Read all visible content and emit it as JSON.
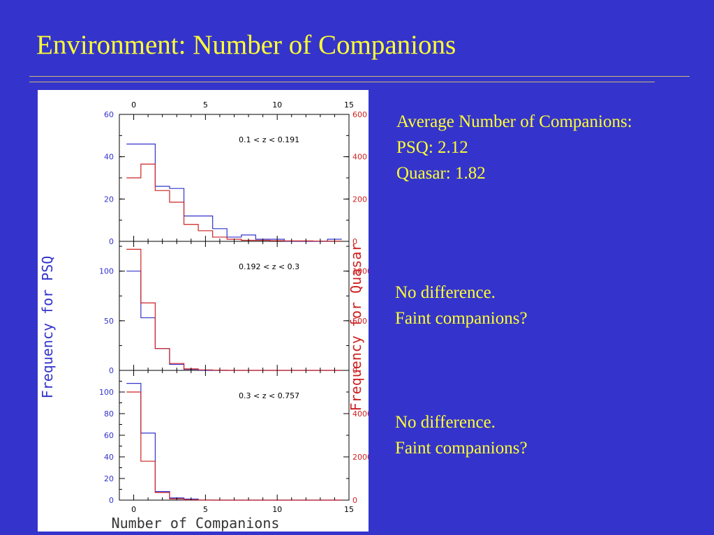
{
  "slide": {
    "title": "Environment: Number of Companions",
    "notes_avg": {
      "heading": "Average Number of Companions:",
      "psq": "PSQ: 2.12",
      "quasar": "Quasar: 1.82"
    },
    "notes_panel2": {
      "line1": "No difference.",
      "line2": "Faint companions?"
    },
    "notes_panel3": {
      "line1": "No difference.",
      "line2": "Faint companions?"
    }
  },
  "chart_data": {
    "type": "histogram",
    "xlabel": "Number of Companions",
    "ylabel_left": "Frequency for PSQ",
    "ylabel_right": "Frequency for Quasar",
    "xlim": [
      -1,
      15
    ],
    "x_ticks_labeled": [
      0,
      5,
      10,
      15
    ],
    "colors": {
      "psq": "#3333cc",
      "quasar": "#cc2222",
      "axis": "#000000"
    },
    "bins": [
      0,
      1,
      2,
      3,
      4,
      5,
      6,
      7,
      8,
      9,
      10,
      11,
      12,
      13,
      14
    ],
    "panels": [
      {
        "label": "0.1 < z < 0.191",
        "ylim_left": [
          0,
          60
        ],
        "ylim_right": [
          0,
          600
        ],
        "left_ticks": [
          0,
          20,
          40,
          60
        ],
        "right_ticks": [
          0,
          200,
          400,
          600
        ],
        "series": [
          {
            "name": "PSQ",
            "axis": "left",
            "values": [
              46,
              46,
              26,
              25,
              12,
              12,
              6,
              2,
              3,
              1,
              1,
              0,
              0,
              0,
              1
            ]
          },
          {
            "name": "Quasar",
            "axis": "right",
            "values": [
              300,
              365,
              240,
              185,
              80,
              50,
              20,
              10,
              5,
              5,
              3,
              2,
              2,
              1,
              1
            ]
          }
        ]
      },
      {
        "label": "0.192 < z < 0.3",
        "ylim_left": [
          0,
          130
        ],
        "ylim_right": [
          0,
          1300
        ],
        "left_ticks": [
          0,
          50,
          100
        ],
        "right_ticks": [
          0,
          500,
          1000
        ],
        "series": [
          {
            "name": "PSQ",
            "axis": "left",
            "values": [
              100,
              53,
              22,
              6,
              1,
              0,
              0,
              0,
              0,
              0,
              0,
              0,
              0,
              0,
              0
            ]
          },
          {
            "name": "Quasar",
            "axis": "right",
            "values": [
              1220,
              680,
              220,
              70,
              15,
              5,
              2,
              0,
              0,
              0,
              0,
              0,
              0,
              0,
              0
            ]
          }
        ]
      },
      {
        "label": "0.3 < z < 0.757",
        "ylim_left": [
          0,
          120
        ],
        "ylim_right": [
          0,
          6000
        ],
        "left_ticks": [
          0,
          20,
          40,
          60,
          80,
          100
        ],
        "right_ticks": [
          0,
          2000,
          4000
        ],
        "series": [
          {
            "name": "PSQ",
            "axis": "left",
            "values": [
              108,
              62,
              8,
              2,
              1,
              0,
              0,
              0,
              0,
              0,
              0,
              0,
              0,
              0,
              0
            ]
          },
          {
            "name": "Quasar",
            "axis": "right",
            "values": [
              5000,
              1800,
              350,
              60,
              15,
              5,
              0,
              0,
              0,
              0,
              0,
              0,
              0,
              0,
              0
            ]
          }
        ]
      }
    ]
  }
}
